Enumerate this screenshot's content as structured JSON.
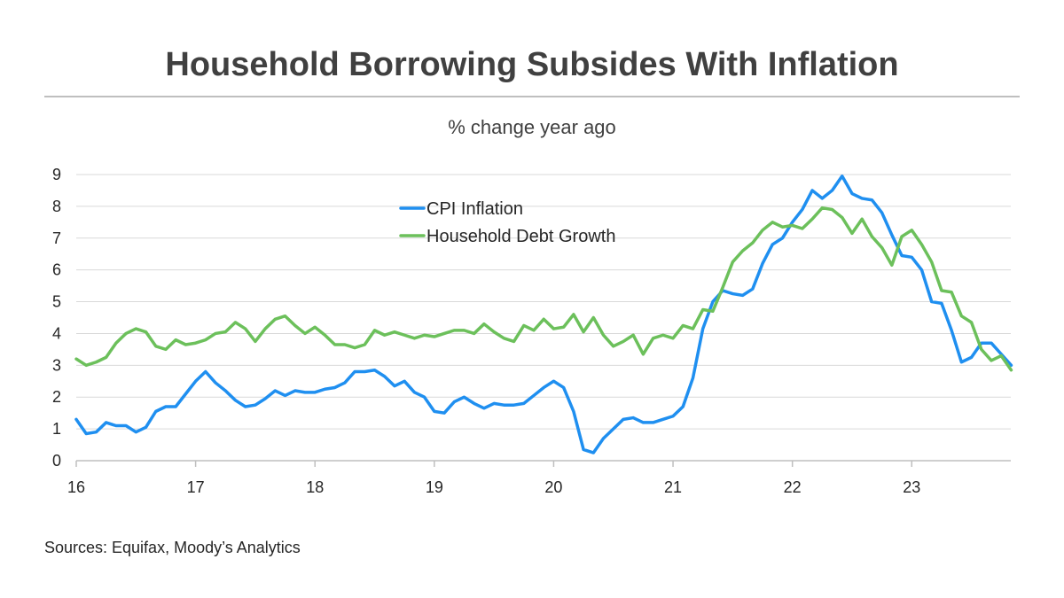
{
  "chart_data": {
    "type": "line",
    "title": "Household Borrowing Subsides With Inflation",
    "subtitle": "% change year ago",
    "source": "Sources: Equifax, Moody’s Analytics",
    "xlim": [
      16,
      23.83
    ],
    "ylim": [
      0,
      9
    ],
    "xticks": [
      16,
      17,
      18,
      19,
      20,
      21,
      22,
      23
    ],
    "xtick_labels": [
      "16",
      "17",
      "18",
      "19",
      "20",
      "21",
      "22",
      "23"
    ],
    "yticks": [
      0,
      1,
      2,
      3,
      4,
      5,
      6,
      7,
      8,
      9
    ],
    "ytick_labels": [
      "0",
      "1",
      "2",
      "3",
      "4",
      "5",
      "6",
      "7",
      "8",
      "9"
    ],
    "grid": "horizontal",
    "legend_position": "top-center",
    "series": [
      {
        "name": "CPI Inflation",
        "color": "#1f8ff0",
        "x_start": 16,
        "step_months": 1,
        "values": [
          1.3,
          0.85,
          0.9,
          1.2,
          1.1,
          1.1,
          0.9,
          1.05,
          1.55,
          1.7,
          1.7,
          2.1,
          2.5,
          2.8,
          2.45,
          2.2,
          1.9,
          1.7,
          1.75,
          1.95,
          2.2,
          2.05,
          2.2,
          2.15,
          2.15,
          2.25,
          2.3,
          2.45,
          2.8,
          2.8,
          2.85,
          2.65,
          2.35,
          2.5,
          2.15,
          2.0,
          1.55,
          1.5,
          1.85,
          2.0,
          1.8,
          1.65,
          1.8,
          1.75,
          1.75,
          1.8,
          2.05,
          2.3,
          2.5,
          2.3,
          1.55,
          0.35,
          0.25,
          0.7,
          1.0,
          1.3,
          1.35,
          1.2,
          1.2,
          1.3,
          1.4,
          1.7,
          2.6,
          4.15,
          5.0,
          5.35,
          5.25,
          5.2,
          5.4,
          6.2,
          6.8,
          7.0,
          7.5,
          7.9,
          8.5,
          8.25,
          8.5,
          8.95,
          8.4,
          8.25,
          8.2,
          7.8,
          7.1,
          6.45,
          6.4,
          6.0,
          5.0,
          4.95,
          4.1,
          3.1,
          3.25,
          3.7,
          3.7,
          3.35,
          3.0
        ]
      },
      {
        "name": "Household Debt Growth",
        "color": "#6cc05b",
        "x_start": 16,
        "step_months": 1,
        "values": [
          3.2,
          3.0,
          3.1,
          3.25,
          3.7,
          4.0,
          4.15,
          4.05,
          3.6,
          3.5,
          3.8,
          3.65,
          3.7,
          3.8,
          4.0,
          4.05,
          4.35,
          4.15,
          3.75,
          4.15,
          4.45,
          4.55,
          4.25,
          4.0,
          4.2,
          3.95,
          3.65,
          3.65,
          3.55,
          3.65,
          4.1,
          3.95,
          4.05,
          3.95,
          3.85,
          3.95,
          3.9,
          4.0,
          4.1,
          4.1,
          4.0,
          4.3,
          4.05,
          3.85,
          3.75,
          4.25,
          4.1,
          4.45,
          4.15,
          4.2,
          4.6,
          4.05,
          4.5,
          3.95,
          3.6,
          3.75,
          3.95,
          3.35,
          3.85,
          3.95,
          3.85,
          4.25,
          4.15,
          4.75,
          4.7,
          5.45,
          6.25,
          6.6,
          6.85,
          7.25,
          7.5,
          7.35,
          7.4,
          7.3,
          7.6,
          7.95,
          7.9,
          7.65,
          7.15,
          7.6,
          7.05,
          6.7,
          6.15,
          7.05,
          7.25,
          6.8,
          6.25,
          5.35,
          5.3,
          4.55,
          4.35,
          3.5,
          3.15,
          3.3,
          2.85
        ]
      }
    ]
  }
}
